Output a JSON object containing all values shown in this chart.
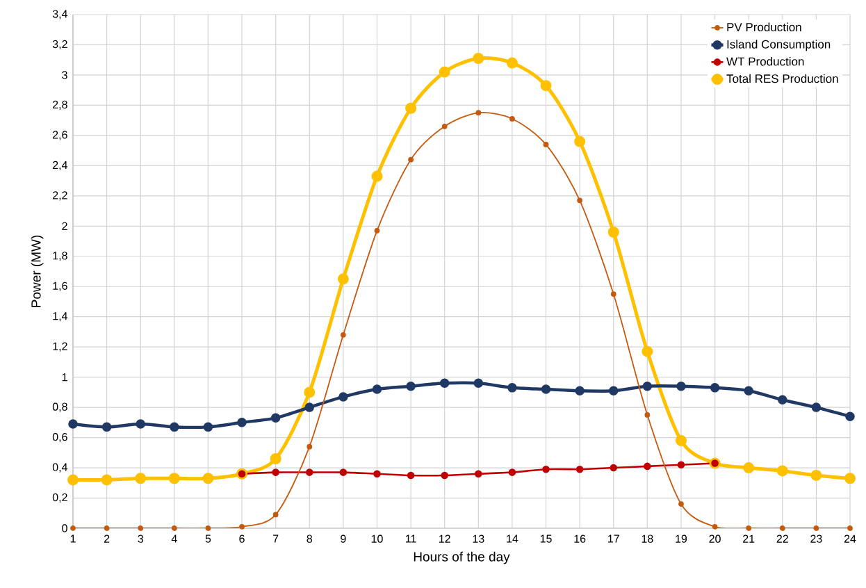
{
  "chart_data": {
    "type": "line",
    "xlabel": "Hours of the day",
    "ylabel": "Power (MW)",
    "x": [
      1,
      2,
      3,
      4,
      5,
      6,
      7,
      8,
      9,
      10,
      11,
      12,
      13,
      14,
      15,
      16,
      17,
      18,
      19,
      20,
      21,
      22,
      23,
      24
    ],
    "series": [
      {
        "name": "PV Production",
        "color": "#c55a11",
        "values": [
          0,
          0,
          0,
          0,
          0,
          0.01,
          0.09,
          0.54,
          1.28,
          1.97,
          2.44,
          2.66,
          2.75,
          2.71,
          2.54,
          2.17,
          1.55,
          0.75,
          0.16,
          0.01,
          0,
          0,
          0,
          0
        ]
      },
      {
        "name": "Island Consumption",
        "color": "#1f3864",
        "values": [
          0.69,
          0.67,
          0.69,
          0.67,
          0.67,
          0.7,
          0.73,
          0.8,
          0.87,
          0.92,
          0.94,
          0.96,
          0.96,
          0.93,
          0.92,
          0.91,
          0.91,
          0.94,
          0.94,
          0.93,
          0.91,
          0.85,
          0.8,
          0.74
        ]
      },
      {
        "name": "WT Production",
        "color": "#c00000",
        "values": [
          null,
          null,
          null,
          null,
          null,
          0.36,
          0.37,
          0.37,
          0.37,
          0.36,
          0.35,
          0.35,
          0.36,
          0.37,
          0.39,
          0.39,
          0.4,
          0.41,
          0.42,
          0.43,
          null,
          null,
          null,
          null
        ]
      },
      {
        "name": "Total RES Production",
        "color": "#ffc000",
        "values": [
          0.32,
          0.32,
          0.33,
          0.33,
          0.33,
          0.36,
          0.46,
          0.9,
          1.65,
          2.33,
          2.78,
          3.02,
          3.11,
          3.08,
          2.93,
          2.56,
          1.96,
          1.17,
          0.58,
          0.43,
          0.4,
          0.38,
          0.35,
          0.33
        ]
      }
    ],
    "xlim": [
      1,
      24
    ],
    "ylim": [
      0,
      3.4
    ],
    "xticks": [
      1,
      2,
      3,
      4,
      5,
      6,
      7,
      8,
      9,
      10,
      11,
      12,
      13,
      14,
      15,
      16,
      17,
      18,
      19,
      20,
      21,
      22,
      23,
      24
    ],
    "yticks": [
      0,
      {
        "value": 0.2,
        "label": "0,2"
      },
      {
        "value": 0.4,
        "label": "0,4"
      },
      {
        "value": 0.6,
        "label": "0,6"
      },
      {
        "value": 0.8,
        "label": "0,8"
      },
      1,
      {
        "value": 1.2,
        "label": "1,2"
      },
      {
        "value": 1.4,
        "label": "1,4"
      },
      {
        "value": 1.6,
        "label": "1,6"
      },
      {
        "value": 1.8,
        "label": "1,8"
      },
      2,
      {
        "value": 2.2,
        "label": "2,2"
      },
      {
        "value": 2.4,
        "label": "2,4"
      },
      {
        "value": 2.6,
        "label": "2,6"
      },
      {
        "value": 2.8,
        "label": "2,8"
      },
      3,
      {
        "value": 3.2,
        "label": "3,2"
      },
      {
        "value": 3.4,
        "label": "3,4"
      }
    ],
    "grid": true,
    "legend": "top right",
    "marker": "circle",
    "line_style": "solid"
  }
}
